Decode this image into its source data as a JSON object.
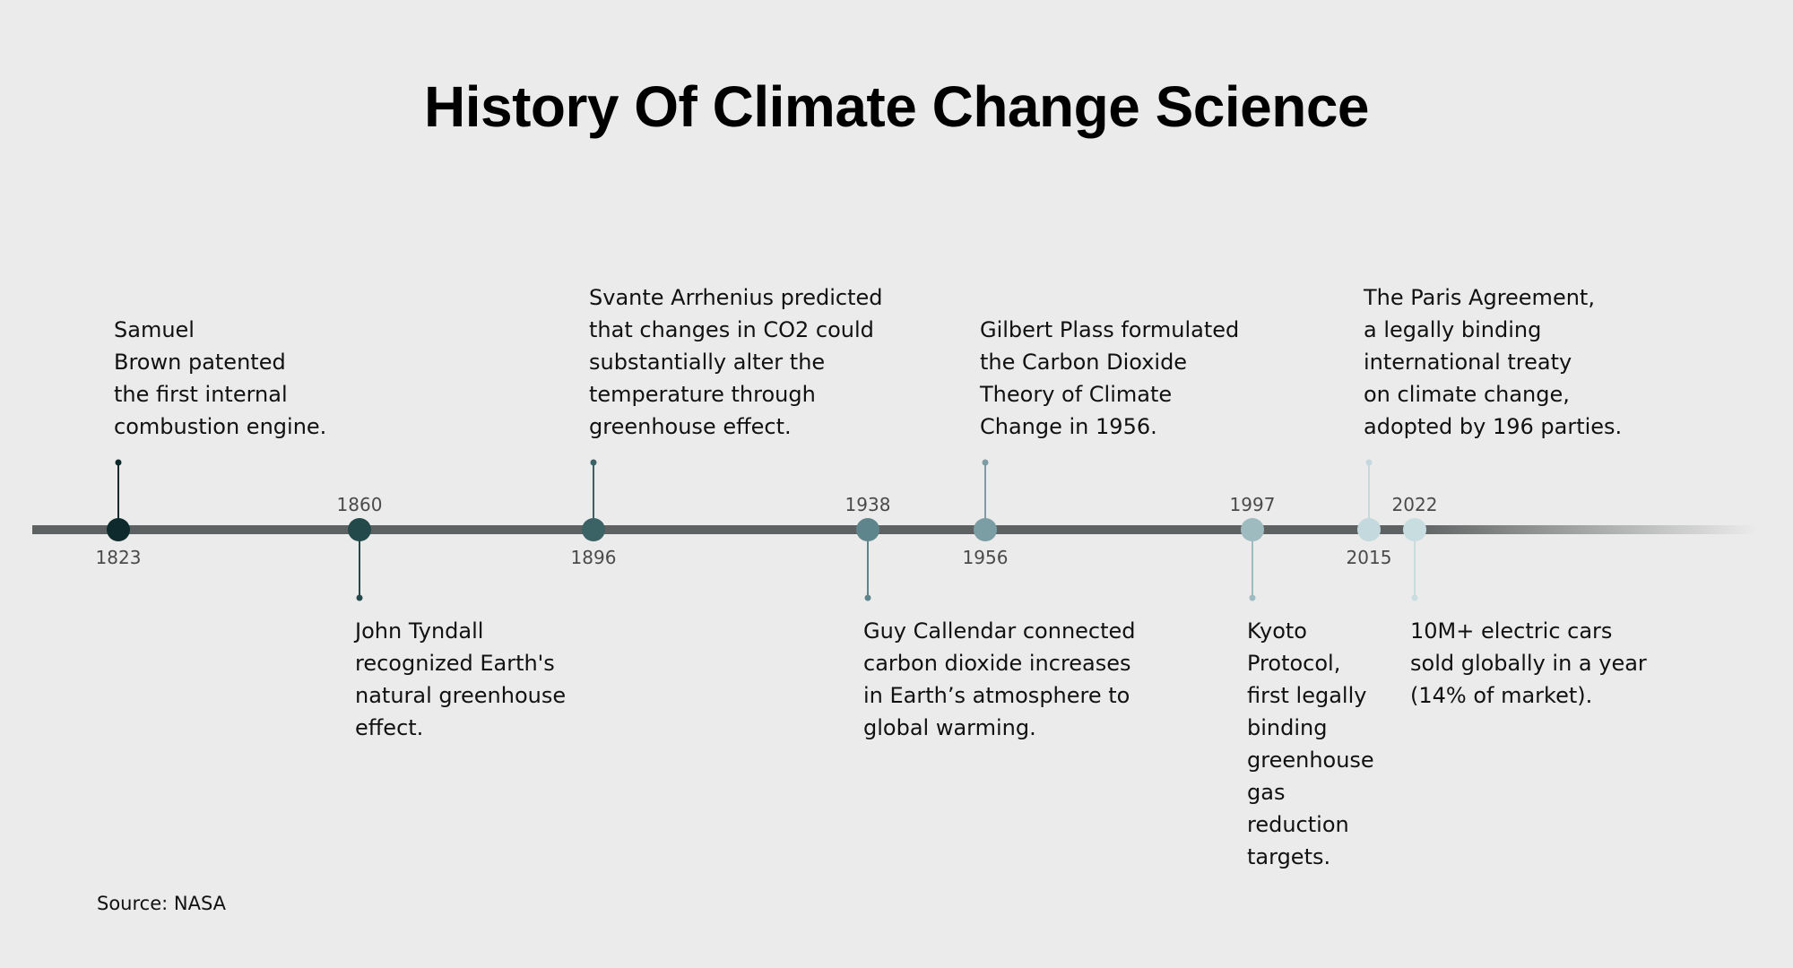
{
  "title": "History Of Climate Change Science",
  "source": "Source: NASA",
  "events": [
    {
      "year": "1823",
      "text": "Samuel\nBrown patented\nthe first internal\ncombustion engine.",
      "color": "#0f2a2c"
    },
    {
      "year": "1860",
      "text": "John Tyndall\nrecognized Earth's\nnatural greenhouse\neffect.",
      "color": "#24494b"
    },
    {
      "year": "1896",
      "text": "Svante Arrhenius predicted\nthat changes in CO2 could\nsubstantially alter the\ntemperature through\ngreenhouse effect.",
      "color": "#3b6265"
    },
    {
      "year": "1938",
      "text": "Guy Callendar connected\ncarbon dioxide increases\nin Earth’s atmosphere to\nglobal warming.",
      "color": "#5f858c"
    },
    {
      "year": "1956",
      "text": "Gilbert Plass formulated\nthe Carbon Dioxide\nTheory of Climate\nChange in 1956.",
      "color": "#7b9da4"
    },
    {
      "year": "1997",
      "text": "Kyoto\nProtocol,\nfirst legally\nbinding\ngreenhouse\ngas\nreduction\ntargets.",
      "color": "#9ebbc0"
    },
    {
      "year": "2015",
      "text": "The Paris Agreement,\na legally binding\ninternational treaty\non climate change,\nadopted by 196 parties.",
      "color": "#c3d9dd"
    },
    {
      "year": "2022",
      "text": "10M+ electric cars\nsold globally in a year\n(14% of market).",
      "color": "#c8dde0"
    }
  ],
  "axis_color": "#5e6161"
}
